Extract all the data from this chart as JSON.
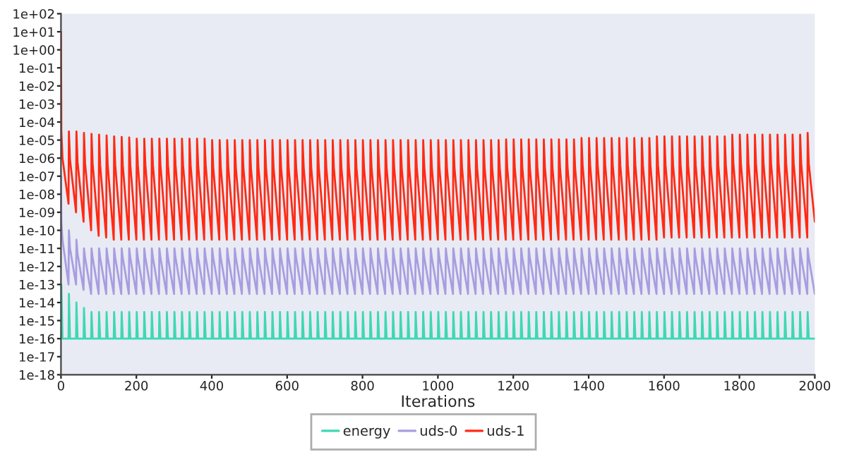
{
  "chart_data": {
    "type": "line",
    "xlabel": "Iterations",
    "log": "y",
    "grid": false,
    "legend": "bottom",
    "line_style": "solid",
    "marker": "none",
    "xlim": [
      0,
      2000
    ],
    "xticks": [
      0,
      200,
      400,
      600,
      800,
      1000,
      1200,
      1400,
      1600,
      1800,
      2000
    ],
    "ylim": [
      1e-18,
      100
    ],
    "yticks": [
      {
        "value": 1e-18,
        "label": "1e-18"
      },
      {
        "value": 1e-17,
        "label": "1e-17"
      },
      {
        "value": 1e-16,
        "label": "1e-16"
      },
      {
        "value": 1e-15,
        "label": "1e-15"
      },
      {
        "value": 1e-14,
        "label": "1e-14"
      },
      {
        "value": 1e-13,
        "label": "1e-13"
      },
      {
        "value": 1e-12,
        "label": "1e-12"
      },
      {
        "value": 1e-11,
        "label": "1e-11"
      },
      {
        "value": 1e-10,
        "label": "1e-10"
      },
      {
        "value": 1e-09,
        "label": "1e-09"
      },
      {
        "value": 1e-08,
        "label": "1e-08"
      },
      {
        "value": 1e-07,
        "label": "1e-07"
      },
      {
        "value": 1e-06,
        "label": "1e-06"
      },
      {
        "value": 1e-05,
        "label": "1e-05"
      },
      {
        "value": 0.0001,
        "label": "1e-04"
      },
      {
        "value": 0.001,
        "label": "1e-03"
      },
      {
        "value": 0.01,
        "label": "1e-02"
      },
      {
        "value": 0.1,
        "label": "1e-01"
      },
      {
        "value": 1,
        "label": "1e+00"
      },
      {
        "value": 10,
        "label": "1e+01"
      },
      {
        "value": 100,
        "label": "1e+02"
      }
    ],
    "x": [
      0,
      1,
      4,
      20,
      21,
      24,
      40,
      41,
      44,
      60,
      61,
      64,
      80,
      81,
      84,
      100,
      101,
      104,
      120,
      121,
      124,
      140,
      141,
      144,
      160,
      161,
      164,
      180,
      181,
      184,
      200,
      201,
      204,
      220,
      221,
      224,
      240,
      241,
      244,
      260,
      261,
      264,
      280,
      281,
      284,
      300,
      301,
      304,
      320,
      321,
      324,
      340,
      341,
      344,
      360,
      361,
      364,
      380,
      381,
      384,
      400,
      401,
      404,
      420,
      421,
      424,
      440,
      441,
      444,
      460,
      461,
      464,
      480,
      481,
      484,
      500,
      501,
      504,
      520,
      521,
      524,
      540,
      541,
      544,
      560,
      561,
      564,
      580,
      581,
      584,
      600,
      601,
      604,
      620,
      621,
      624,
      640,
      641,
      644,
      660,
      661,
      664,
      680,
      681,
      684,
      700,
      701,
      704,
      720,
      721,
      724,
      740,
      741,
      744,
      760,
      761,
      764,
      780,
      781,
      784,
      800,
      801,
      804,
      820,
      821,
      824,
      840,
      841,
      844,
      860,
      861,
      864,
      880,
      881,
      884,
      900,
      901,
      904,
      920,
      921,
      924,
      940,
      941,
      944,
      960,
      961,
      964,
      980,
      981,
      984,
      1000,
      1001,
      1004,
      1020,
      1021,
      1024,
      1040,
      1041,
      1044,
      1060,
      1061,
      1064,
      1080,
      1081,
      1084,
      1100,
      1101,
      1104,
      1120,
      1121,
      1124,
      1140,
      1141,
      1144,
      1160,
      1161,
      1164,
      1180,
      1181,
      1184,
      1200,
      1201,
      1204,
      1220,
      1221,
      1224,
      1240,
      1241,
      1244,
      1260,
      1261,
      1264,
      1280,
      1281,
      1284,
      1300,
      1301,
      1304,
      1320,
      1321,
      1324,
      1340,
      1341,
      1344,
      1360,
      1361,
      1364,
      1380,
      1381,
      1384,
      1400,
      1401,
      1404,
      1420,
      1421,
      1424,
      1440,
      1441,
      1444,
      1460,
      1461,
      1464,
      1480,
      1481,
      1484,
      1500,
      1501,
      1504,
      1520,
      1521,
      1524,
      1540,
      1541,
      1544,
      1560,
      1561,
      1564,
      1580,
      1581,
      1584,
      1600,
      1601,
      1604,
      1620,
      1621,
      1624,
      1640,
      1641,
      1644,
      1660,
      1661,
      1664,
      1680,
      1681,
      1684,
      1700,
      1701,
      1704,
      1720,
      1721,
      1724,
      1740,
      1741,
      1744,
      1760,
      1761,
      1764,
      1780,
      1781,
      1784,
      1800,
      1801,
      1804,
      1820,
      1821,
      1824,
      1840,
      1841,
      1844,
      1860,
      1861,
      1864,
      1880,
      1881,
      1884,
      1900,
      1901,
      1904,
      1920,
      1921,
      1924,
      1940,
      1941,
      1944,
      1960,
      1961,
      1964,
      1980,
      1981,
      1984,
      2000
    ],
    "series": [
      {
        "name": "energy",
        "color": "#3dd8b4",
        "values": [
          null,
          1e-13,
          1e-16,
          1e-16,
          3e-14,
          1e-16,
          1e-16,
          1e-14,
          1e-16,
          1e-16,
          5e-15,
          1e-16,
          1e-16,
          3e-15,
          1e-16,
          1e-16,
          3e-15,
          1e-16,
          1e-16,
          3e-15,
          1e-16,
          1e-16,
          3e-15,
          1e-16,
          1e-16,
          3e-15,
          1e-16,
          1e-16,
          3e-15,
          1e-16,
          1e-16,
          3e-15,
          1e-16,
          1e-16,
          3e-15,
          1e-16,
          1e-16,
          3e-15,
          1e-16,
          1e-16,
          3e-15,
          1e-16,
          1e-16,
          3e-15,
          1e-16,
          1e-16,
          3e-15,
          1e-16,
          1e-16,
          3e-15,
          1e-16,
          1e-16,
          3e-15,
          1e-16,
          1e-16,
          3e-15,
          1e-16,
          1e-16,
          3e-15,
          1e-16,
          1e-16,
          3e-15,
          1e-16,
          1e-16,
          3e-15,
          1e-16,
          1e-16,
          3e-15,
          1e-16,
          1e-16,
          3e-15,
          1e-16,
          1e-16,
          3e-15,
          1e-16,
          1e-16,
          3e-15,
          1e-16,
          1e-16,
          3e-15,
          1e-16,
          1e-16,
          3e-15,
          1e-16,
          1e-16,
          3e-15,
          1e-16,
          1e-16,
          3e-15,
          1e-16,
          1e-16,
          3e-15,
          1e-16,
          1e-16,
          3e-15,
          1e-16,
          1e-16,
          3e-15,
          1e-16,
          1e-16,
          3e-15,
          1e-16,
          1e-16,
          3e-15,
          1e-16,
          1e-16,
          3e-15,
          1e-16,
          1e-16,
          3e-15,
          1e-16,
          1e-16,
          3e-15,
          1e-16,
          1e-16,
          3e-15,
          1e-16,
          1e-16,
          3e-15,
          1e-16,
          1e-16,
          3e-15,
          1e-16,
          1e-16,
          3e-15,
          1e-16,
          1e-16,
          3e-15,
          1e-16,
          1e-16,
          3e-15,
          1e-16,
          1e-16,
          3e-15,
          1e-16,
          1e-16,
          3e-15,
          1e-16,
          1e-16,
          3e-15,
          1e-16,
          1e-16,
          3e-15,
          1e-16,
          1e-16,
          3e-15,
          1e-16,
          1e-16,
          3e-15,
          1e-16,
          1e-16,
          3e-15,
          1e-16,
          1e-16,
          3e-15,
          1e-16,
          1e-16,
          3e-15,
          1e-16,
          1e-16,
          3e-15,
          1e-16,
          1e-16,
          3e-15,
          1e-16,
          1e-16,
          3e-15,
          1e-16,
          1e-16,
          3e-15,
          1e-16,
          1e-16,
          3e-15,
          1e-16,
          1e-16,
          3e-15,
          1e-16,
          1e-16,
          3e-15,
          1e-16,
          1e-16,
          3e-15,
          1e-16,
          1e-16,
          3e-15,
          1e-16,
          1e-16,
          3e-15,
          1e-16,
          1e-16,
          3e-15,
          1e-16,
          1e-16,
          3e-15,
          1e-16,
          1e-16,
          3e-15,
          1e-16,
          1e-16,
          3e-15,
          1e-16,
          1e-16,
          3e-15,
          1e-16,
          1e-16,
          3e-15,
          1e-16,
          1e-16,
          3e-15,
          1e-16,
          1e-16,
          3e-15,
          1e-16,
          1e-16,
          3e-15,
          1e-16,
          1e-16,
          3e-15,
          1e-16,
          1e-16,
          3e-15,
          1e-16,
          1e-16,
          3e-15,
          1e-16,
          1e-16,
          3e-15,
          1e-16,
          1e-16,
          3e-15,
          1e-16,
          1e-16,
          3e-15,
          1e-16,
          1e-16,
          3e-15,
          1e-16,
          1e-16,
          3e-15,
          1e-16,
          1e-16,
          3e-15,
          1e-16,
          1e-16,
          3e-15,
          1e-16,
          1e-16,
          3e-15,
          1e-16,
          1e-16,
          3e-15,
          1e-16,
          1e-16,
          3e-15,
          1e-16,
          1e-16,
          3e-15,
          1e-16,
          1e-16,
          3e-15,
          1e-16,
          1e-16,
          3e-15,
          1e-16,
          1e-16,
          3e-15,
          1e-16,
          1e-16,
          3e-15,
          1e-16,
          1e-16,
          3e-15,
          1e-16,
          1e-16,
          3e-15,
          1e-16,
          1e-16,
          3e-15,
          1e-16,
          1e-16,
          3e-15,
          1e-16,
          1e-16,
          3e-15,
          1e-16,
          1e-16,
          3e-15,
          1e-16,
          1e-16,
          3e-15,
          1e-16,
          1e-16,
          3e-15,
          1e-16,
          1e-16,
          3e-15,
          1e-16,
          1e-16,
          3e-15,
          1e-16,
          1e-16
        ]
      },
      {
        "name": "uds-0",
        "color": "#a99ce0",
        "values": [
          1e-07,
          3e-10,
          3e-11,
          1e-13,
          1e-10,
          1e-11,
          1e-13,
          3e-11,
          5e-12,
          5e-14,
          1e-11,
          3e-12,
          3e-14,
          1e-11,
          3e-12,
          3e-14,
          1e-11,
          3e-12,
          3e-14,
          1e-11,
          3e-12,
          3e-14,
          1e-11,
          3e-12,
          3e-14,
          1e-11,
          3e-12,
          3e-14,
          1e-11,
          3e-12,
          3e-14,
          1e-11,
          3e-12,
          3e-14,
          1e-11,
          3e-12,
          3e-14,
          1e-11,
          3e-12,
          3e-14,
          1e-11,
          3e-12,
          3e-14,
          1e-11,
          3e-12,
          3e-14,
          1e-11,
          3e-12,
          3e-14,
          1e-11,
          3e-12,
          3e-14,
          1e-11,
          3e-12,
          3e-14,
          1e-11,
          3e-12,
          3e-14,
          1e-11,
          3e-12,
          3e-14,
          1e-11,
          3e-12,
          3e-14,
          1e-11,
          3e-12,
          3e-14,
          1e-11,
          3e-12,
          3e-14,
          1e-11,
          3e-12,
          3e-14,
          1e-11,
          3e-12,
          3e-14,
          1e-11,
          3e-12,
          3e-14,
          1e-11,
          3e-12,
          3e-14,
          1e-11,
          3e-12,
          3e-14,
          1e-11,
          3e-12,
          3e-14,
          1e-11,
          3e-12,
          3e-14,
          1e-11,
          3e-12,
          3e-14,
          1e-11,
          3e-12,
          3e-14,
          1e-11,
          3e-12,
          3e-14,
          1e-11,
          3e-12,
          3e-14,
          1e-11,
          3e-12,
          3e-14,
          1e-11,
          3e-12,
          3e-14,
          1e-11,
          3e-12,
          3e-14,
          1e-11,
          3e-12,
          3e-14,
          1e-11,
          3e-12,
          3e-14,
          1e-11,
          3e-12,
          3e-14,
          1e-11,
          3e-12,
          3e-14,
          1e-11,
          3e-12,
          3e-14,
          1e-11,
          3e-12,
          3e-14,
          1e-11,
          3e-12,
          3e-14,
          1e-11,
          3e-12,
          3e-14,
          1e-11,
          3e-12,
          3e-14,
          1e-11,
          3e-12,
          3e-14,
          1e-11,
          3e-12,
          3e-14,
          1e-11,
          3e-12,
          3e-14,
          1e-11,
          3e-12,
          3e-14,
          1e-11,
          3e-12,
          3e-14,
          1e-11,
          3e-12,
          3e-14,
          1e-11,
          3e-12,
          3e-14,
          1e-11,
          3e-12,
          3e-14,
          1e-11,
          3e-12,
          3e-14,
          1e-11,
          3e-12,
          3e-14,
          1e-11,
          3e-12,
          3e-14,
          1e-11,
          3e-12,
          3e-14,
          1e-11,
          3e-12,
          3e-14,
          1e-11,
          3e-12,
          3e-14,
          1e-11,
          3e-12,
          3e-14,
          1e-11,
          3e-12,
          3e-14,
          1e-11,
          3e-12,
          3e-14,
          1e-11,
          3e-12,
          3e-14,
          1e-11,
          3e-12,
          3e-14,
          1e-11,
          3e-12,
          3e-14,
          1e-11,
          3e-12,
          3e-14,
          1e-11,
          3e-12,
          3e-14,
          1e-11,
          3e-12,
          3e-14,
          1e-11,
          3e-12,
          3e-14,
          1e-11,
          3e-12,
          3e-14,
          1e-11,
          3e-12,
          3e-14,
          1e-11,
          3e-12,
          3e-14,
          1e-11,
          3e-12,
          3e-14,
          1e-11,
          3e-12,
          3e-14,
          1e-11,
          3e-12,
          3e-14,
          1e-11,
          3e-12,
          3e-14,
          1e-11,
          3e-12,
          3e-14,
          1e-11,
          3e-12,
          3e-14,
          1e-11,
          3e-12,
          3e-14,
          1e-11,
          3e-12,
          3e-14,
          1e-11,
          3e-12,
          3e-14,
          1e-11,
          3e-12,
          3e-14,
          1e-11,
          3e-12,
          3e-14,
          1e-11,
          3e-12,
          3e-14,
          1e-11,
          3e-12,
          3e-14,
          1e-11,
          3e-12,
          3e-14,
          1e-11,
          3e-12,
          3e-14,
          1e-11,
          3e-12,
          3e-14,
          1e-11,
          3e-12,
          3e-14,
          1e-11,
          3e-12,
          3e-14,
          1e-11,
          3e-12,
          3e-14,
          1e-11,
          3e-12,
          3e-14,
          1e-11,
          3e-12,
          3e-14,
          1e-11,
          3e-12,
          3e-14,
          1e-11,
          3e-12,
          3e-14,
          1e-11,
          3e-12,
          3e-14,
          1e-11,
          3e-12,
          3e-14,
          1e-11,
          3e-12,
          3e-14,
          1e-11,
          3e-12,
          3e-14
        ]
      },
      {
        "name": "uds-1",
        "color": "#ff2a14",
        "values": [
          10,
          3e-05,
          1e-06,
          3e-09,
          3e-05,
          8e-07,
          1e-09,
          3e-05,
          6e-07,
          3e-10,
          2.5e-05,
          5e-07,
          1e-10,
          2.2e-05,
          5e-07,
          5e-11,
          2e-05,
          4e-07,
          4e-11,
          1.8e-05,
          4e-07,
          3e-11,
          1.6e-05,
          4e-07,
          3e-11,
          1.5e-05,
          4e-07,
          3e-11,
          1.4e-05,
          4e-07,
          3e-11,
          1.2e-05,
          4e-07,
          3e-11,
          1.2e-05,
          4e-07,
          3e-11,
          1.2e-05,
          4e-07,
          3e-11,
          1.2e-05,
          4e-07,
          3e-11,
          1.2e-05,
          4e-07,
          3e-11,
          1.2e-05,
          4e-07,
          3e-11,
          1.2e-05,
          4e-07,
          3e-11,
          1.2e-05,
          4e-07,
          3e-11,
          1.2e-05,
          4e-07,
          3e-11,
          1.2e-05,
          4e-07,
          3e-11,
          1e-05,
          3e-07,
          3e-11,
          1e-05,
          3e-07,
          3e-11,
          1e-05,
          3e-07,
          3e-11,
          1e-05,
          3e-07,
          3e-11,
          1e-05,
          3e-07,
          3e-11,
          1e-05,
          3e-07,
          3e-11,
          1e-05,
          3e-07,
          3e-11,
          1e-05,
          3e-07,
          3e-11,
          1e-05,
          3e-07,
          3e-11,
          1e-05,
          3e-07,
          3e-11,
          1e-05,
          3e-07,
          3e-11,
          1e-05,
          3e-07,
          3e-11,
          1e-05,
          3e-07,
          3e-11,
          1e-05,
          3e-07,
          3e-11,
          1e-05,
          3e-07,
          3e-11,
          1e-05,
          3e-07,
          3e-11,
          1e-05,
          3e-07,
          3e-11,
          1e-05,
          3e-07,
          3e-11,
          1e-05,
          3e-07,
          3e-11,
          1e-05,
          3e-07,
          3e-11,
          1e-05,
          3e-07,
          3e-11,
          1e-05,
          3e-07,
          3e-11,
          1e-05,
          3e-07,
          3e-11,
          1e-05,
          3e-07,
          3e-11,
          1e-05,
          3e-07,
          3e-11,
          1e-05,
          3e-07,
          3e-11,
          1e-05,
          3e-07,
          3e-11,
          1e-05,
          3e-07,
          3e-11,
          1e-05,
          3e-07,
          3e-11,
          1e-05,
          3e-07,
          3e-11,
          1e-05,
          3e-07,
          3e-11,
          1e-05,
          3e-07,
          3e-11,
          1e-05,
          3e-07,
          3e-11,
          1e-05,
          3e-07,
          3e-11,
          1e-05,
          3e-07,
          3e-11,
          1e-05,
          3e-07,
          3e-11,
          1e-05,
          3e-07,
          3e-11,
          1e-05,
          3e-07,
          3e-11,
          1e-05,
          3e-07,
          3e-11,
          1.1e-05,
          3e-07,
          3e-11,
          1.1e-05,
          3e-07,
          3e-11,
          1.1e-05,
          3e-07,
          3e-11,
          1.1e-05,
          3e-07,
          3e-11,
          1.1e-05,
          3e-07,
          3e-11,
          1.1e-05,
          3e-07,
          3e-11,
          1.1e-05,
          3e-07,
          3e-11,
          1.1e-05,
          3e-07,
          3e-11,
          1.1e-05,
          3e-07,
          3e-11,
          1.1e-05,
          3e-07,
          3e-11,
          1.3e-05,
          4e-07,
          3e-11,
          1.3e-05,
          4e-07,
          3e-11,
          1.3e-05,
          4e-07,
          3e-11,
          1.3e-05,
          4e-07,
          3e-11,
          1.3e-05,
          4e-07,
          3e-11,
          1.3e-05,
          4e-07,
          3e-11,
          1.3e-05,
          4e-07,
          3e-11,
          1.3e-05,
          4e-07,
          3e-11,
          1.3e-05,
          4e-07,
          3e-11,
          1.3e-05,
          4e-07,
          3e-11,
          1.6e-05,
          4e-07,
          4e-11,
          1.6e-05,
          4e-07,
          4e-11,
          1.6e-05,
          4e-07,
          4e-11,
          1.6e-05,
          4e-07,
          4e-11,
          1.6e-05,
          4e-07,
          4e-11,
          1.6e-05,
          4e-07,
          4e-11,
          1.6e-05,
          4e-07,
          4e-11,
          1.6e-05,
          4e-07,
          4e-11,
          1.6e-05,
          4e-07,
          4e-11,
          1.6e-05,
          4e-07,
          4e-11,
          2e-05,
          5e-07,
          4e-11,
          2e-05,
          5e-07,
          4e-11,
          2e-05,
          5e-07,
          4e-11,
          2e-05,
          5e-07,
          4e-11,
          2e-05,
          5e-07,
          4e-11,
          2e-05,
          5e-07,
          4e-11,
          2e-05,
          5e-07,
          4e-11,
          2e-05,
          5e-07,
          4e-11,
          2e-05,
          5e-07,
          4e-11,
          2e-05,
          5e-07,
          4e-11,
          2.5e-05,
          5e-07,
          3e-10
        ]
      }
    ]
  }
}
